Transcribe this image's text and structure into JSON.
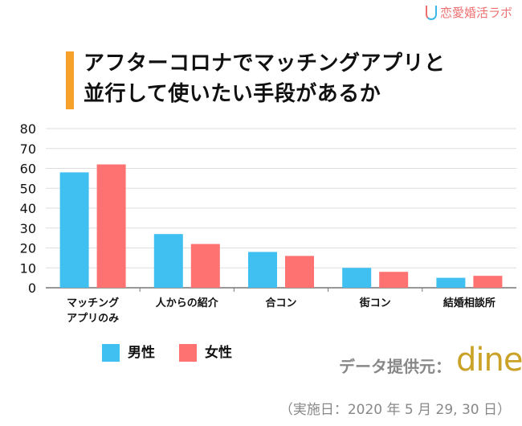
{
  "logo": {
    "text": "恋愛婚活ラボ"
  },
  "title": [
    "アフターコロナでマッチングアプリと",
    "並行して使いたい手段があるか"
  ],
  "source": {
    "label": "データ提供元：",
    "brand": "dine"
  },
  "date": "（実施日：2020 年 5 月 29, 30 日）",
  "colors": {
    "male": "#3fc0f0",
    "female": "#ff7272",
    "accent": "#f7a02a"
  },
  "chart_data": {
    "type": "bar",
    "title": "アフターコロナでマッチングアプリと並行して使いたい手段があるか",
    "categories": [
      [
        "マッチング",
        "アプリのみ"
      ],
      [
        "人からの紹介"
      ],
      [
        "合コン"
      ],
      [
        "街コン"
      ],
      [
        "結婚相談所"
      ]
    ],
    "series": [
      {
        "name": "男性",
        "values": [
          58,
          27,
          18,
          10,
          5
        ]
      },
      {
        "name": "女性",
        "values": [
          62,
          22,
          16,
          8,
          6
        ]
      }
    ],
    "yticks": [
      0,
      10,
      20,
      30,
      40,
      50,
      60,
      70,
      80
    ],
    "ylim": [
      0,
      80
    ],
    "grid": true,
    "legend": "bottom-left"
  }
}
